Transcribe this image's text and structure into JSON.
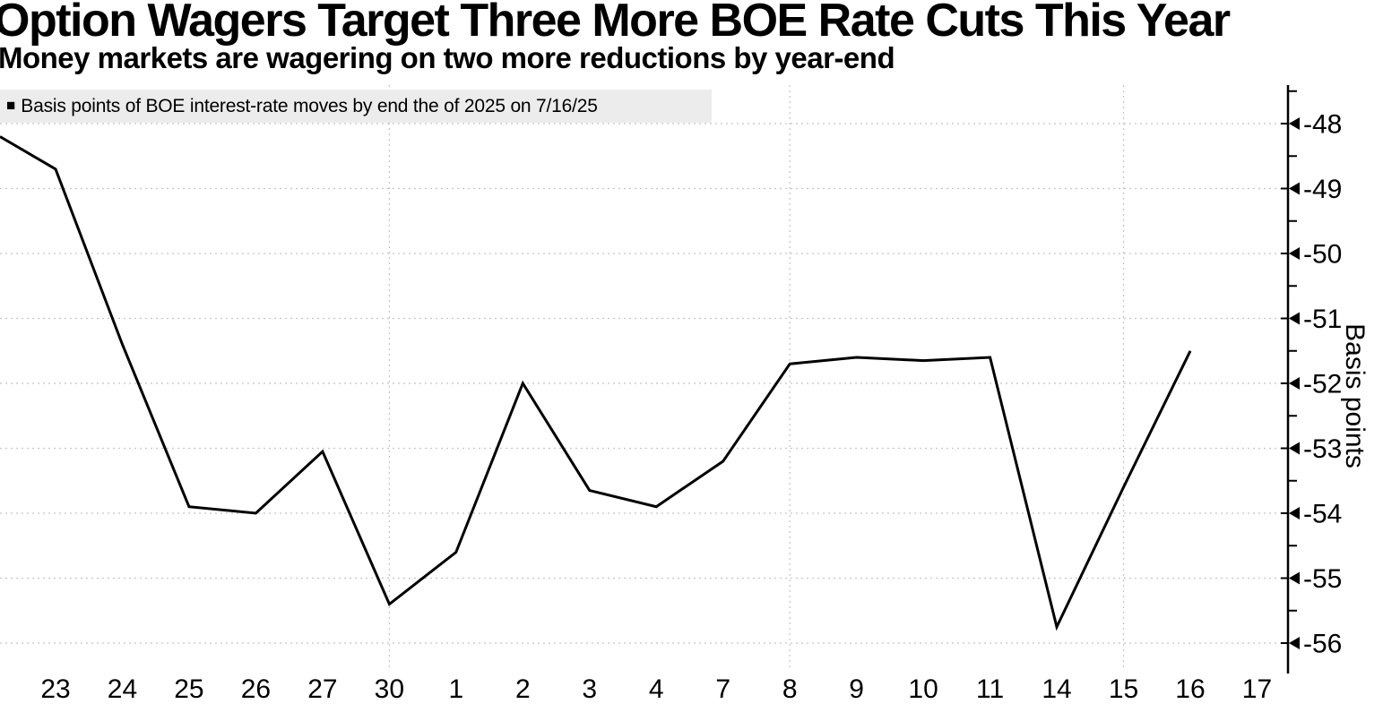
{
  "chart_data": {
    "type": "line",
    "title": "Option Wagers Target Three More BOE Rate Cuts This Year",
    "subtitle": "Money markets are wagering on two more reductions by year-end",
    "legend_label": "Basis points of BOE interest-rate moves by end the of 2025 on 7/16/25",
    "legend_position": "top-left",
    "xlabel": "",
    "ylabel": "Basis points",
    "x_tick_labels": [
      "23",
      "24",
      "25",
      "26",
      "27",
      "30",
      "1",
      "2",
      "3",
      "4",
      "7",
      "8",
      "9",
      "10",
      "11",
      "14",
      "15",
      "16",
      "17"
    ],
    "series": [
      {
        "name": "Basis points of BOE interest-rate moves by end the of 2025 on 7/16/25",
        "x": [
          "23",
          "24",
          "25",
          "26",
          "27",
          "30",
          "1",
          "2",
          "3",
          "4",
          "7",
          "8",
          "9",
          "10",
          "11",
          "14",
          "15",
          "16"
        ],
        "values": [
          -48.7,
          -51.4,
          -53.9,
          -54.0,
          -53.05,
          -55.4,
          -54.6,
          -52.0,
          -53.65,
          -53.9,
          -53.2,
          -51.7,
          -51.6,
          -51.65,
          -51.6,
          -55.75,
          -53.6,
          -51.5
        ]
      }
    ],
    "leading_edge_value": -48.2,
    "y_ticks": [
      -48,
      -49,
      -50,
      -51,
      -52,
      -53,
      -54,
      -55,
      -56
    ],
    "y_minor_tick_step": 0.5,
    "ylim": [
      -56.45,
      -47.4
    ],
    "grid": {
      "horizontal": true,
      "vertical_at_labels": [
        "30",
        "8",
        "15"
      ],
      "style": "dashed"
    },
    "line_color": "#000000"
  },
  "ui": {
    "legend_marker": "■",
    "colors": {
      "background": "#ffffff",
      "text": "#000000",
      "grid": "#c4c4c4",
      "legend_bg": "#ececec",
      "axis": "#000000"
    }
  }
}
